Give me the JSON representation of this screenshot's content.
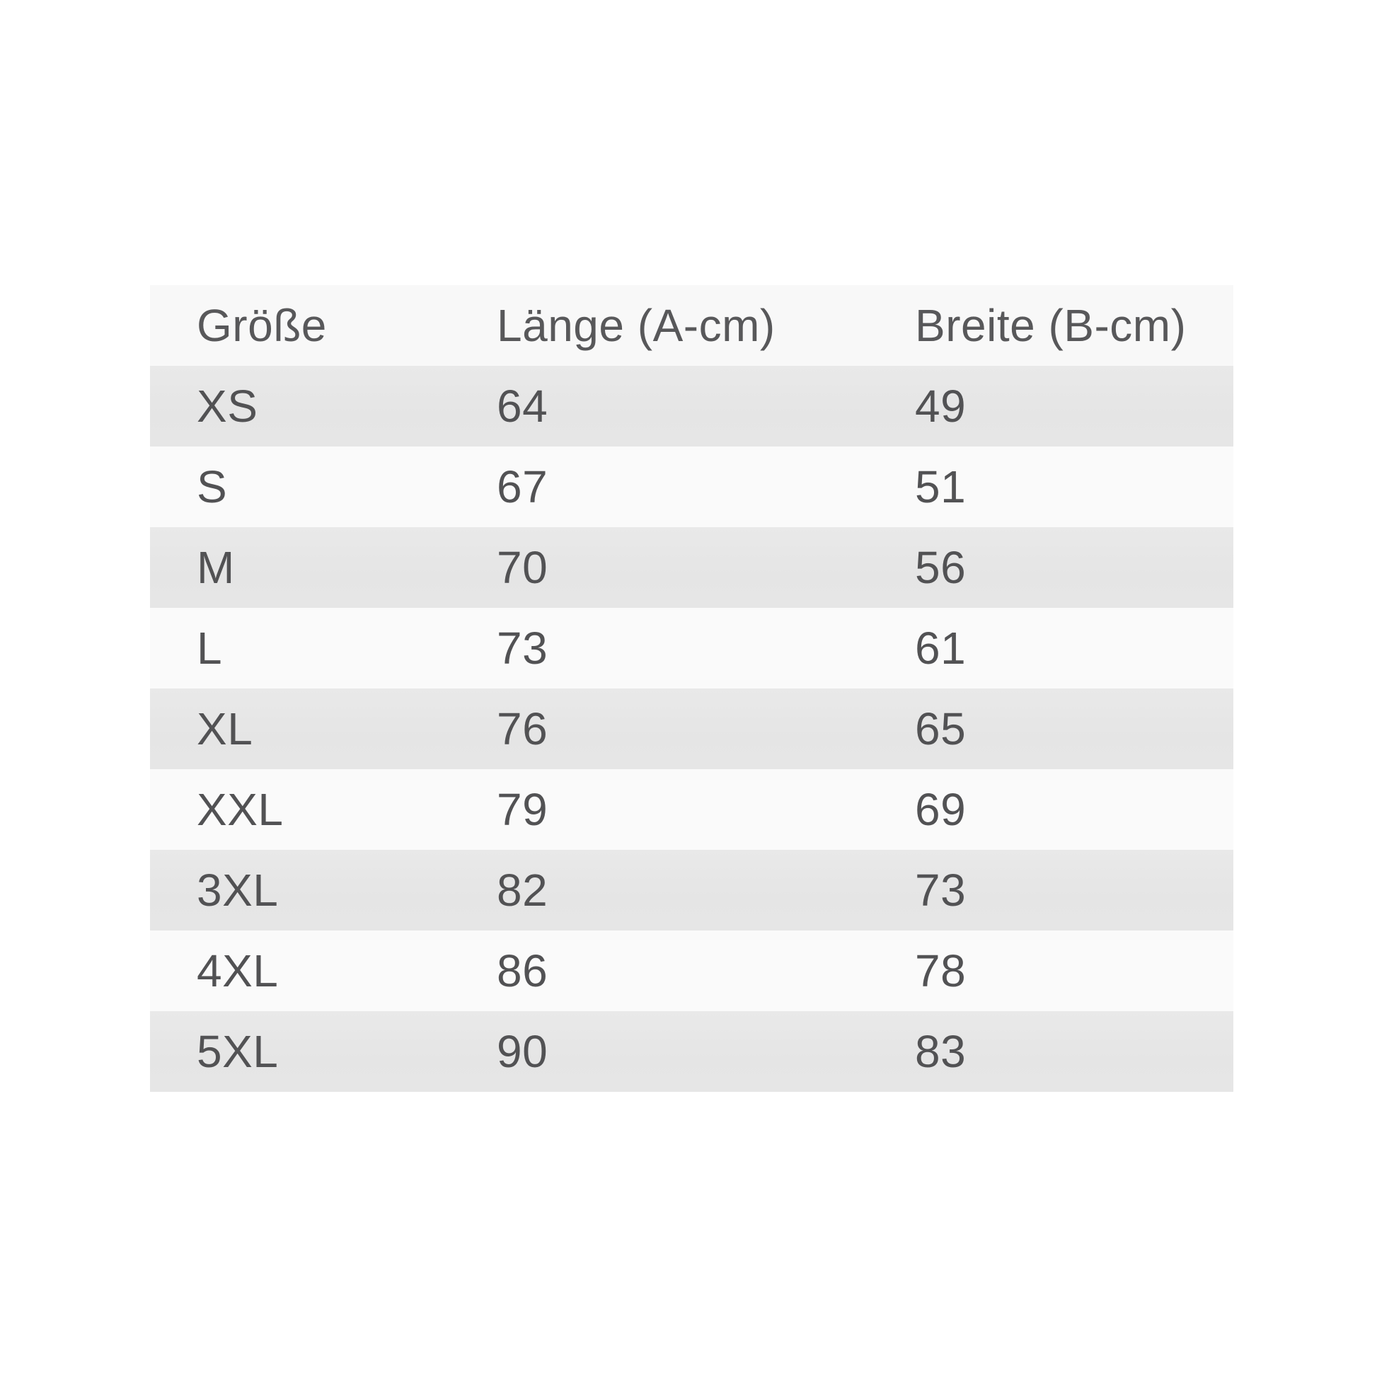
{
  "chart_data": {
    "type": "table",
    "title": "",
    "columns": [
      "Größe",
      "Länge (A-cm)",
      "Breite (B-cm)"
    ],
    "rows": [
      [
        "XS",
        "64",
        "49"
      ],
      [
        "S",
        "67",
        "51"
      ],
      [
        "M",
        "70",
        "56"
      ],
      [
        "L",
        "73",
        "61"
      ],
      [
        "XL",
        "76",
        "65"
      ],
      [
        "XXL",
        "79",
        "69"
      ],
      [
        "3XL",
        "82",
        "73"
      ],
      [
        "4XL",
        "86",
        "78"
      ],
      [
        "5XL",
        "90",
        "83"
      ]
    ],
    "layout_hints": {
      "striped": true,
      "stripe_color_dark": "#e6e6e6",
      "stripe_color_light": "#fafafa",
      "header_background": "#f8f8f8",
      "text_color": "#525254",
      "page_background": "#ffffff",
      "grid": false
    }
  }
}
